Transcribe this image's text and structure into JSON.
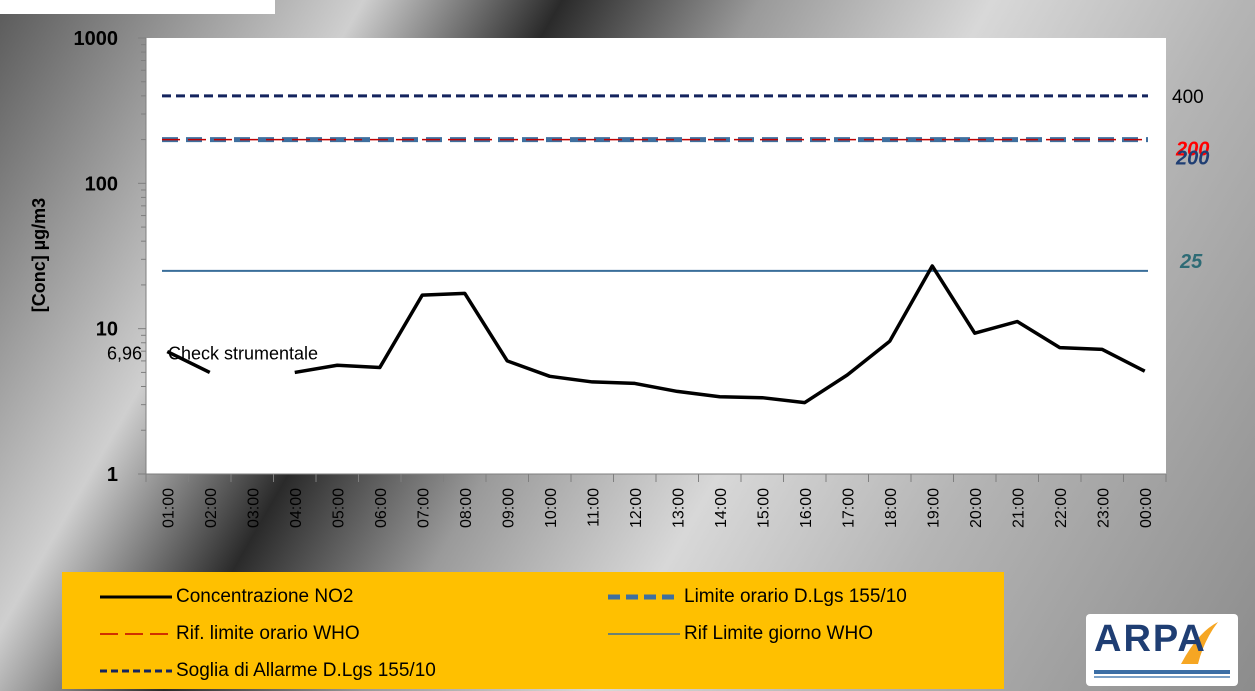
{
  "colors": {
    "no2": "#000000",
    "limite_orario": "#3f6f9e",
    "who_orario": "#c00000",
    "who_giorno": "#3a6e9a",
    "allarme": "#14245e",
    "label_200_red": "#ff0000",
    "label_200_navy": "#1f3e73",
    "label_25": "#2e6b75",
    "legend_bg": "#ffc000"
  },
  "chart_data": {
    "type": "line",
    "yscale": "log",
    "ylim": [
      1,
      1000
    ],
    "ylabel": "[Conc] µg/m3",
    "yticks": [
      "1",
      "10",
      "100",
      "1000"
    ],
    "categories": [
      "01:00",
      "02:00",
      "03:00",
      "04:00",
      "05:00",
      "06:00",
      "07:00",
      "08:00",
      "09:00",
      "10:00",
      "11:00",
      "12:00",
      "13:00",
      "14:00",
      "15:00",
      "16:00",
      "17:00",
      "18:00",
      "19:00",
      "20:00",
      "21:00",
      "22:00",
      "23:00",
      "00:00"
    ],
    "series": [
      {
        "name": "Concentrazione NO2",
        "values": [
          6.96,
          5.0,
          null,
          5.0,
          5.6,
          5.4,
          17.0,
          17.5,
          6.0,
          4.7,
          4.3,
          4.2,
          3.7,
          3.4,
          3.35,
          3.1,
          4.8,
          8.2,
          27.0,
          9.3,
          11.2,
          7.4,
          7.2,
          5.1
        ]
      },
      {
        "name": "Limite orario D.Lgs 155/10",
        "values": [
          200,
          200,
          200,
          200,
          200,
          200,
          200,
          200,
          200,
          200,
          200,
          200,
          200,
          200,
          200,
          200,
          200,
          200,
          200,
          200,
          200,
          200,
          200,
          200
        ]
      },
      {
        "name": "Rif. limite orario WHO",
        "values": [
          200,
          200,
          200,
          200,
          200,
          200,
          200,
          200,
          200,
          200,
          200,
          200,
          200,
          200,
          200,
          200,
          200,
          200,
          200,
          200,
          200,
          200,
          200,
          200
        ]
      },
      {
        "name": "Rif Limite giorno WHO",
        "values": [
          25,
          25,
          25,
          25,
          25,
          25,
          25,
          25,
          25,
          25,
          25,
          25,
          25,
          25,
          25,
          25,
          25,
          25,
          25,
          25,
          25,
          25,
          25,
          25
        ]
      },
      {
        "name": "Soglia di Allarme D.Lgs 155/10",
        "values": [
          400,
          400,
          400,
          400,
          400,
          400,
          400,
          400,
          400,
          400,
          400,
          400,
          400,
          400,
          400,
          400,
          400,
          400,
          400,
          400,
          400,
          400,
          400,
          400
        ]
      }
    ],
    "annotations": {
      "first_value": "6,96",
      "check": "Check strumentale",
      "right_400": "400",
      "right_200_red": "200",
      "right_200_navy": "200",
      "right_25": "25"
    },
    "legend": [
      {
        "label": "Concentrazione NO2",
        "style": "solid",
        "key": "no2"
      },
      {
        "label": "Limite orario D.Lgs 155/10",
        "style": "thick-dash",
        "key": "limite_orario"
      },
      {
        "label": "Rif. limite orario WHO",
        "style": "long-dash",
        "key": "who_orario"
      },
      {
        "label": "Rif Limite giorno WHO",
        "style": "thin-solid",
        "key": "who_giorno"
      },
      {
        "label": "Soglia di Allarme D.Lgs 155/10",
        "style": "short-dash",
        "key": "allarme"
      }
    ]
  },
  "logo": {
    "text": "ARPA"
  }
}
